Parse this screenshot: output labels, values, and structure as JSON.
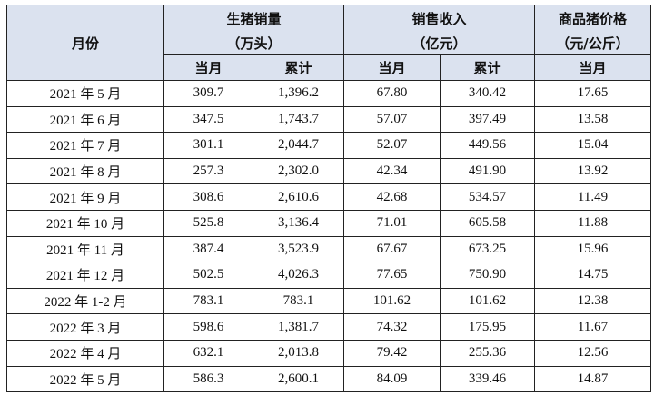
{
  "table": {
    "header": {
      "month": "月份",
      "groups": [
        {
          "title": "生猪销量",
          "unit": "（万头）"
        },
        {
          "title": "销售收入",
          "unit": "（亿元）"
        },
        {
          "title": "商品猪价格",
          "unit": "（元/公斤）"
        }
      ],
      "sub": [
        "当月",
        "累计",
        "当月",
        "累计",
        "当月"
      ]
    },
    "rows": [
      [
        "2021 年 5 月",
        "309.7",
        "1,396.2",
        "67.80",
        "340.42",
        "17.65"
      ],
      [
        "2021 年 6 月",
        "347.5",
        "1,743.7",
        "57.07",
        "397.49",
        "13.58"
      ],
      [
        "2021 年 7 月",
        "301.1",
        "2,044.7",
        "52.07",
        "449.56",
        "15.04"
      ],
      [
        "2021 年 8 月",
        "257.3",
        "2,302.0",
        "42.34",
        "491.90",
        "13.92"
      ],
      [
        "2021 年 9 月",
        "308.6",
        "2,610.6",
        "42.68",
        "534.57",
        "11.49"
      ],
      [
        "2021 年 10 月",
        "525.8",
        "3,136.4",
        "71.01",
        "605.58",
        "11.88"
      ],
      [
        "2021 年 11 月",
        "387.4",
        "3,523.9",
        "67.67",
        "673.25",
        "15.96"
      ],
      [
        "2021 年 12 月",
        "502.5",
        "4,026.3",
        "77.65",
        "750.90",
        "14.75"
      ],
      [
        "2022 年 1-2 月",
        "783.1",
        "783.1",
        "101.62",
        "101.62",
        "12.38"
      ],
      [
        "2022 年 3 月",
        "598.6",
        "1,381.7",
        "74.32",
        "175.95",
        "11.67"
      ],
      [
        "2022 年 4 月",
        "632.1",
        "2,013.8",
        "79.42",
        "255.36",
        "12.56"
      ],
      [
        "2022 年 5 月",
        "586.3",
        "2,600.1",
        "84.09",
        "339.46",
        "14.87"
      ]
    ]
  }
}
